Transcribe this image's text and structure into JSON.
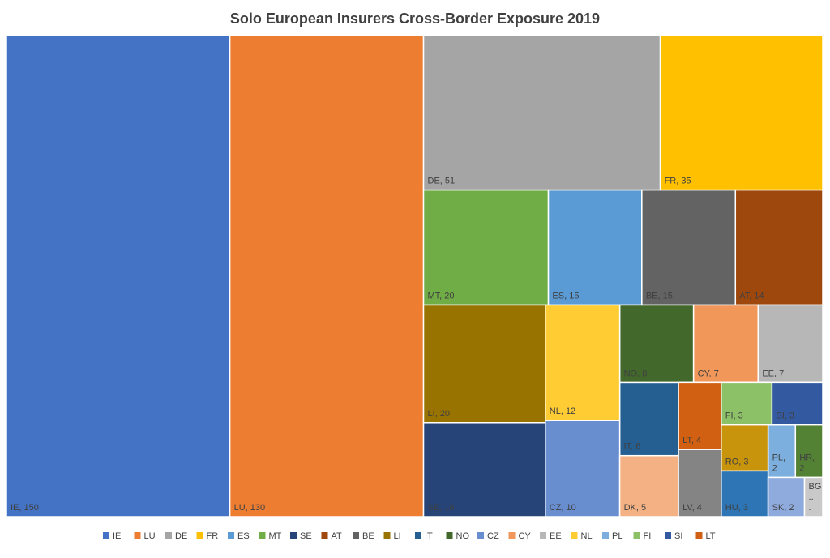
{
  "chart_data": {
    "type": "treemap",
    "title": "Solo European Insurers Cross-Border Exposure 2019",
    "series": [
      {
        "name": "IE",
        "color": "#4472c4",
        "value": 150,
        "value_label": "IE, 150",
        "label_color": "#ffffff"
      },
      {
        "name": "LU",
        "color": "#ed7d31",
        "value": 130,
        "value_label": "LU, 130",
        "label_color": "#ffffff"
      },
      {
        "name": "DE",
        "color": "#a5a5a5",
        "value": 51,
        "value_label": "DE, 51"
      },
      {
        "name": "FR",
        "color": "#ffc000",
        "value": 35,
        "value_label": "FR, 35"
      },
      {
        "name": "ES",
        "color": "#5b9bd5",
        "value": 15,
        "value_label": "ES, 15"
      },
      {
        "name": "MT",
        "color": "#70ad47",
        "value": 20,
        "value_label": "MT, 20"
      },
      {
        "name": "SE",
        "color": "#264478",
        "value": 16,
        "value_label": "SE, 16"
      },
      {
        "name": "AT",
        "color": "#9e480e",
        "value": 14,
        "value_label": "AT, 14"
      },
      {
        "name": "BE",
        "color": "#636363",
        "value": 15,
        "value_label": "BE, 15"
      },
      {
        "name": "LI",
        "color": "#997300",
        "value": 20,
        "value_label": "LI, 20"
      },
      {
        "name": "IT",
        "color": "#255e91",
        "value": 6,
        "value_label": "IT, 6"
      },
      {
        "name": "NO",
        "color": "#43682b",
        "value": 8,
        "value_label": "NO, 8"
      },
      {
        "name": "CZ",
        "color": "#698ed0",
        "value": 10,
        "value_label": "CZ, 10"
      },
      {
        "name": "CY",
        "color": "#f1975a",
        "value": 7,
        "value_label": "CY, 7"
      },
      {
        "name": "EE",
        "color": "#b7b7b7",
        "value": 7,
        "value_label": "EE, 7"
      },
      {
        "name": "NL",
        "color": "#ffcd33",
        "value": 12,
        "value_label": "NL, 12"
      },
      {
        "name": "PL",
        "color": "#7cafdd",
        "value": 2,
        "value_label": "PL, 2"
      },
      {
        "name": "FI",
        "color": "#8cc168",
        "value": 3,
        "value_label": "FI, 3"
      },
      {
        "name": "SI",
        "color": "#335aa1",
        "value": 3,
        "value_label": "SI, 3"
      },
      {
        "name": "LT",
        "color": "#d26012",
        "value": 4,
        "value_label": "LT, 4"
      },
      {
        "name": "HU",
        "color": "#2e75b6",
        "value": 3,
        "value_label": "HU, 3"
      },
      {
        "name": "RO",
        "color": "#c8940c",
        "value": 3,
        "value_label": "RO, 3"
      },
      {
        "name": "HR",
        "color": "#548235",
        "value": 2,
        "value_label": "HR, 2"
      },
      {
        "name": "DK",
        "color": "#f4b183",
        "value": 5,
        "value_label": "DK, 5"
      },
      {
        "name": "LV",
        "color": "#848484",
        "value": 4,
        "value_label": "LV, 4"
      },
      {
        "name": "SK",
        "color": "#8faadc",
        "value": 2,
        "value_label": "SK, 2"
      },
      {
        "name": "BG",
        "color": "#c9c9c9",
        "value": 1,
        "value_label": "BG..."
      }
    ]
  }
}
